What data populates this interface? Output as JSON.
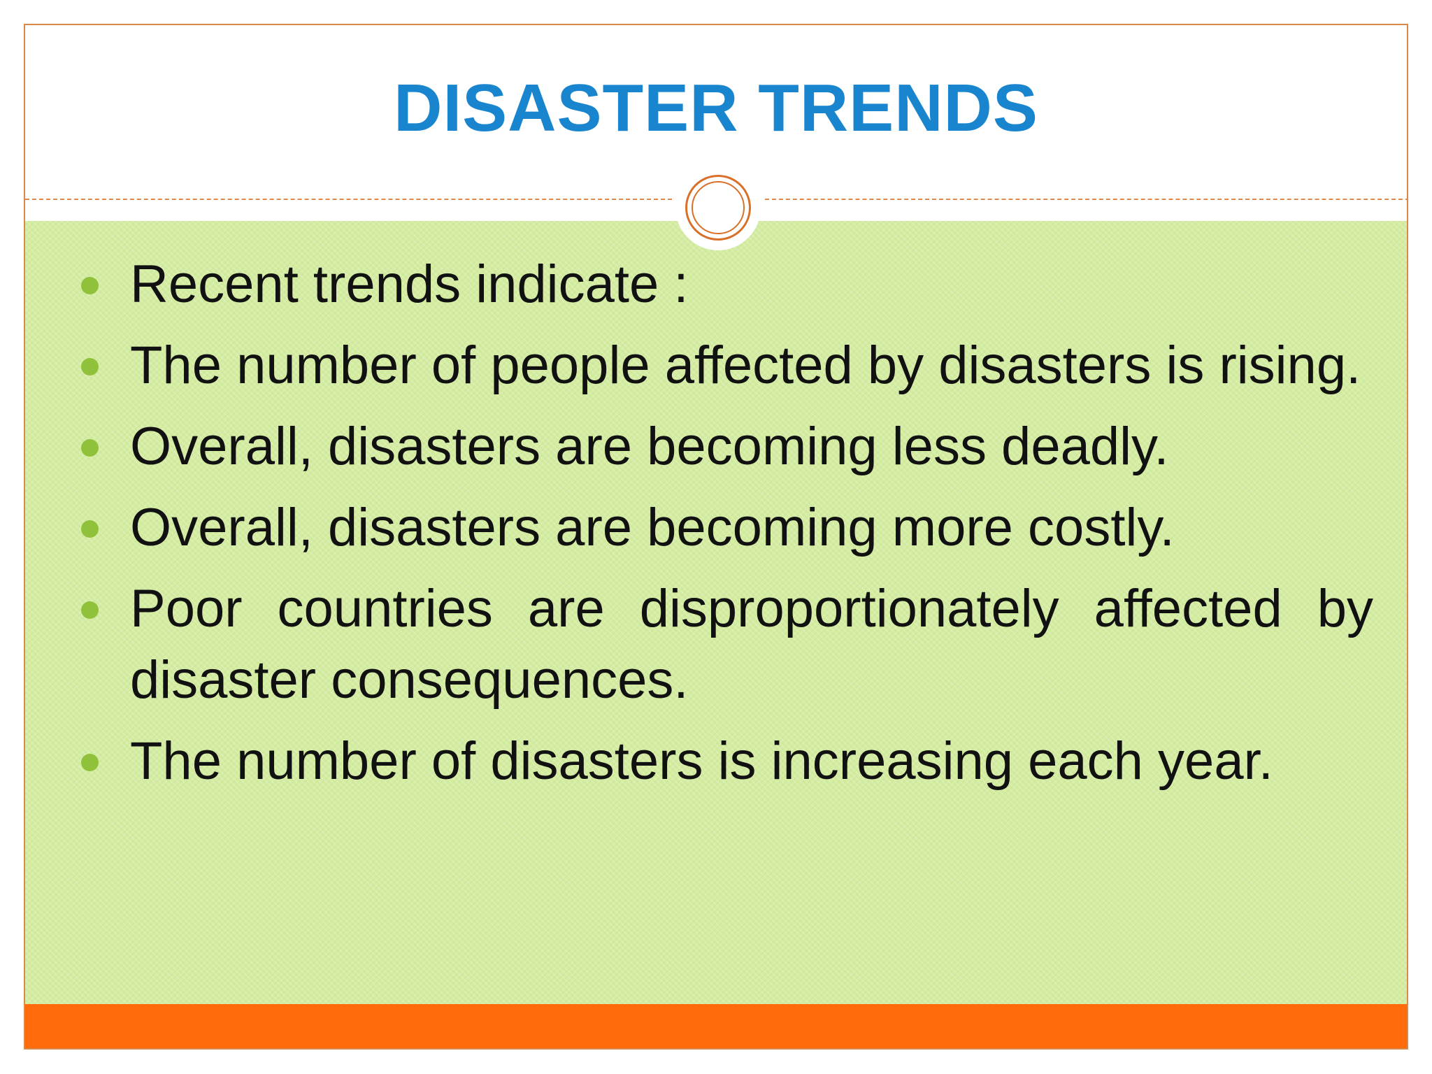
{
  "slide": {
    "title": "DISASTER TRENDS",
    "bullets": [
      "Recent trends indicate :",
      "The number of people affected by disasters is rising.",
      "Overall, disasters are becoming less deadly.",
      "Overall, disasters are becoming more costly.",
      "Poor countries are disproportionately affected by disaster consequences.",
      "The number of disasters is increasing each year."
    ]
  },
  "colors": {
    "title": "#1a85cf",
    "content_background": "#d4eca1",
    "bullet_marker": "#8fc23a",
    "accent_orange": "#ff6a0a",
    "divider": "#e0884a"
  }
}
